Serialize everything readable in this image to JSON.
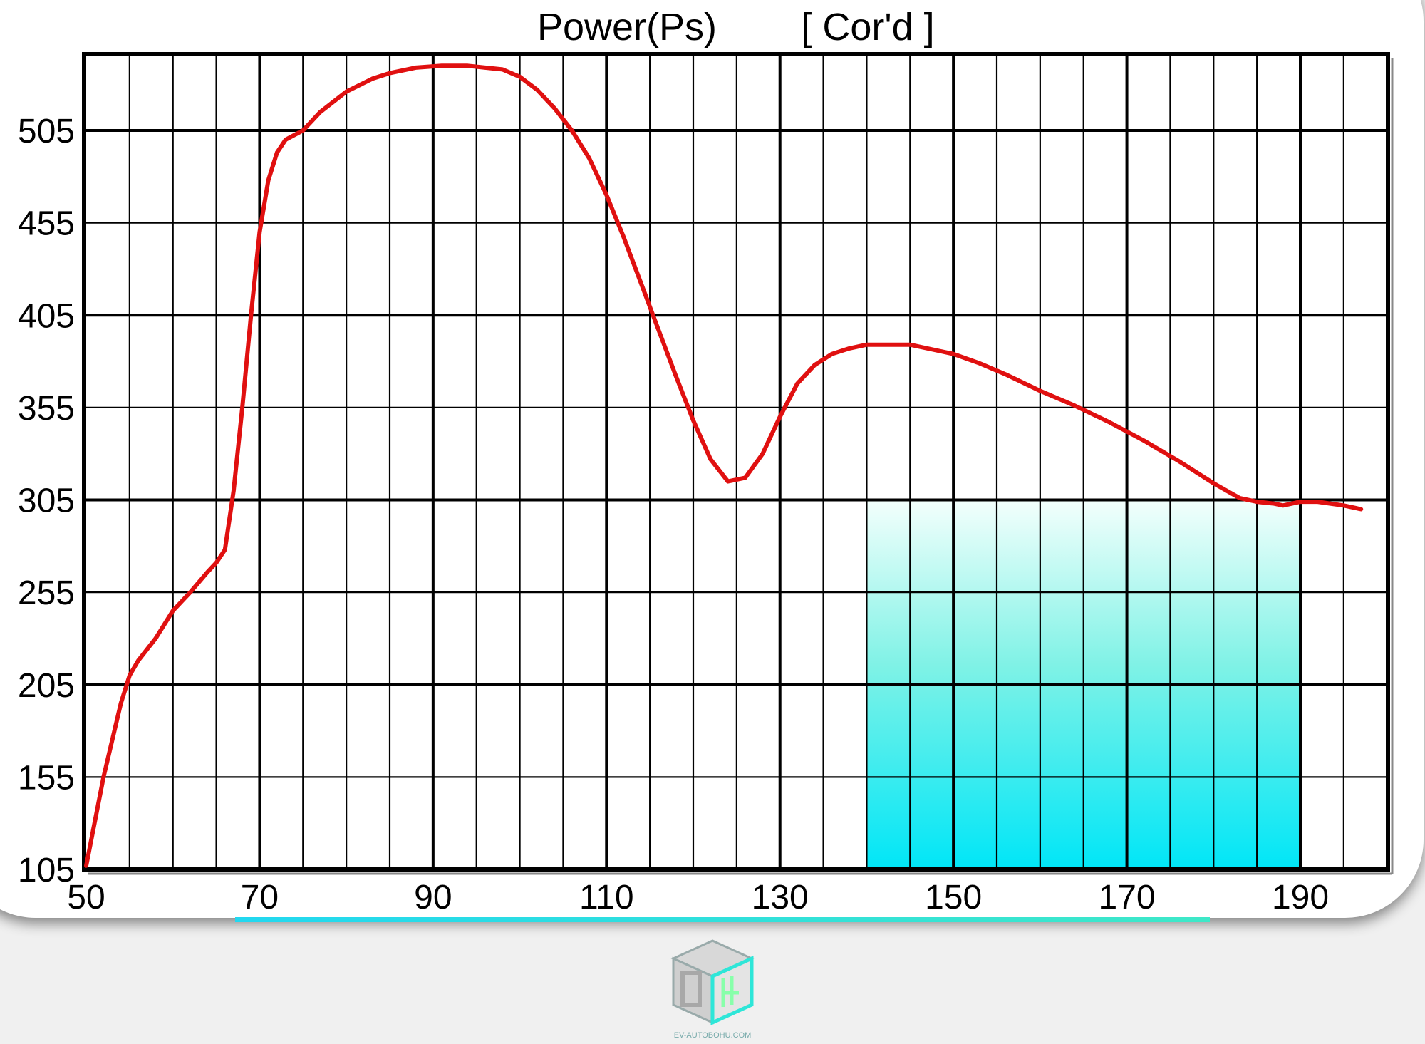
{
  "chart_data": {
    "type": "line",
    "title": "Power(Ps)",
    "subtitle": "[ Cor'd ]",
    "xlabel": "",
    "ylabel": "",
    "xlim": [
      50,
      200
    ],
    "ylim": [
      105,
      547
    ],
    "x_ticks": [
      50,
      70,
      90,
      110,
      130,
      150,
      170,
      190
    ],
    "y_ticks": [
      105,
      155,
      205,
      255,
      305,
      355,
      405,
      455,
      505
    ],
    "grid": true,
    "highlight_band": {
      "x": [
        140,
        190
      ],
      "y": [
        105,
        305
      ]
    },
    "series": [
      {
        "x": [
          50,
          52,
          54,
          55,
          56,
          58,
          60,
          62,
          64,
          65,
          66,
          67,
          68,
          69,
          70,
          71,
          72,
          73,
          75,
          77,
          80,
          83,
          85,
          88,
          91,
          94,
          96,
          98,
          100,
          102,
          104,
          106,
          108,
          110,
          112,
          114,
          116,
          118,
          120,
          122,
          124,
          126,
          128,
          130,
          132,
          134,
          136,
          138,
          140,
          142,
          145,
          148,
          150,
          153,
          156,
          160,
          164,
          168,
          172,
          176,
          180,
          183,
          185,
          187,
          188,
          190,
          192,
          195,
          197
        ],
        "y": [
          107,
          155,
          195,
          210,
          218,
          230,
          245,
          255,
          266,
          271,
          278,
          310,
          355,
          405,
          450,
          478,
          493,
          500,
          505,
          515,
          526,
          533,
          536,
          539,
          540,
          540,
          539,
          538,
          534,
          527,
          517,
          505,
          490,
          470,
          447,
          422,
          397,
          372,
          348,
          327,
          315,
          317,
          330,
          350,
          368,
          378,
          384,
          387,
          389,
          389,
          389,
          386,
          384,
          379,
          373,
          364,
          356,
          347,
          337,
          326,
          314,
          306,
          304,
          303,
          302,
          304,
          304,
          302,
          300
        ]
      }
    ]
  },
  "watermark": {
    "text": "EV-AUTOBOHU.COM"
  }
}
